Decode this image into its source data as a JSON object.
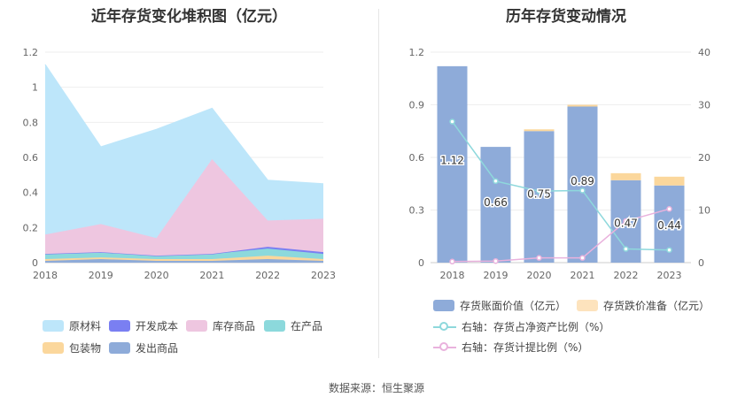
{
  "left_title": "近年存货变化堆积图（亿元）",
  "right_title": "历年存货变动情况",
  "source": "数据来源：恒生聚源",
  "chart_data": [
    {
      "type": "area",
      "title": "近年存货变化堆积图（亿元）",
      "categories": [
        "2018",
        "2019",
        "2020",
        "2021",
        "2022",
        "2023"
      ],
      "ylim": [
        0,
        1.2
      ],
      "yticks": [
        "0",
        "0.2",
        "0.4",
        "0.6",
        "0.8",
        "1",
        "1.2"
      ],
      "stacked": true,
      "series": [
        {
          "name": "发出商品",
          "color": "#8eabd9",
          "values": [
            0.01,
            0.02,
            0.01,
            0.01,
            0.02,
            0.01
          ]
        },
        {
          "name": "包装物",
          "color": "#fbd79c",
          "values": [
            0.01,
            0.01,
            0.01,
            0.01,
            0.02,
            0.01
          ]
        },
        {
          "name": "在产品",
          "color": "#8cd9dc",
          "values": [
            0.03,
            0.03,
            0.02,
            0.03,
            0.04,
            0.03
          ]
        },
        {
          "name": "开发成本",
          "color": "#7a7ff2",
          "values": [
            0,
            0,
            0,
            0,
            0.01,
            0.01
          ]
        },
        {
          "name": "库存商品",
          "color": "#eec6e0",
          "values": [
            0.11,
            0.16,
            0.1,
            0.54,
            0.15,
            0.19
          ]
        },
        {
          "name": "原材料",
          "color": "#bde6fa",
          "values": [
            0.97,
            0.44,
            0.62,
            0.29,
            0.23,
            0.2
          ]
        }
      ],
      "legend": [
        "原材料",
        "开发成本",
        "库存商品",
        "在产品",
        "包装物",
        "发出商品"
      ],
      "legend_position": "bottom"
    },
    {
      "type": "bar",
      "title": "历年存货变动情况",
      "categories": [
        "2018",
        "2019",
        "2020",
        "2021",
        "2022",
        "2023"
      ],
      "ylim": [
        0,
        1.2
      ],
      "yticks": [
        "0",
        "0.3",
        "0.6",
        "0.9",
        "1.2"
      ],
      "y2lim": [
        0,
        40
      ],
      "y2ticks": [
        "0",
        "10",
        "20",
        "30",
        "40"
      ],
      "bars": [
        {
          "name": "存货账面价值（亿元）",
          "color": "#8eabd9",
          "values": [
            1.12,
            0.66,
            0.75,
            0.89,
            0.47,
            0.44
          ],
          "labels": [
            "1.12",
            "0.66",
            "0.75",
            "0.89",
            "0.47",
            "0.44"
          ]
        },
        {
          "name": "存货跌价准备（亿元）",
          "color": "#fde3bd",
          "values": [
            0,
            0,
            0.01,
            0.01,
            0.04,
            0.05
          ]
        }
      ],
      "lines": [
        {
          "name": "右轴：存货占净资产比例（%）",
          "color": "#8ed8dc",
          "values": [
            26.8,
            15.5,
            13.6,
            13.7,
            2.6,
            2.4
          ]
        },
        {
          "name": "右轴：存货计提比例（%）",
          "color": "#e9b2dd",
          "values": [
            0.2,
            0.3,
            0.9,
            0.9,
            7.9,
            10.2
          ]
        }
      ],
      "legend_position": "bottom"
    }
  ]
}
